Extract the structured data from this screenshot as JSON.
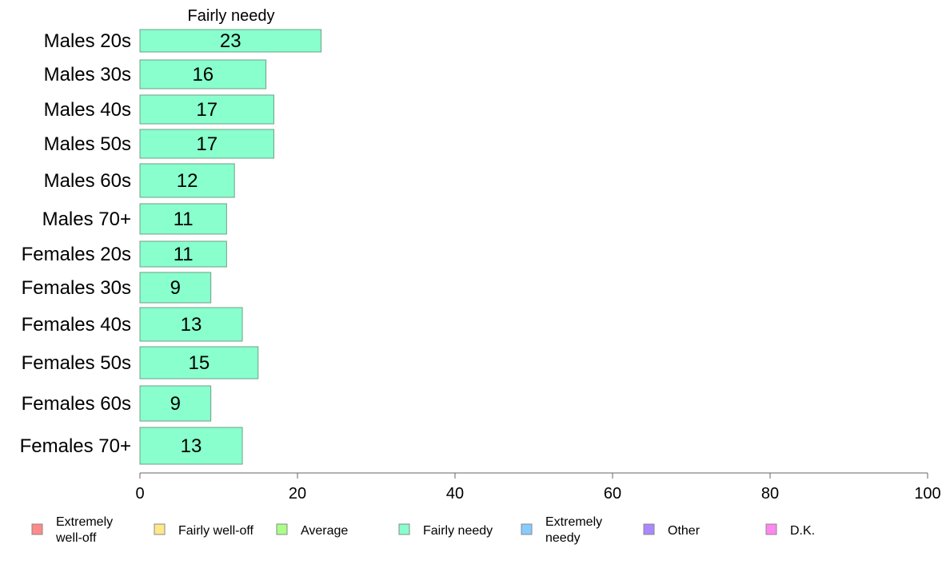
{
  "chart_data": {
    "type": "bar",
    "orientation": "horizontal",
    "title": "Fairly needy",
    "categories": [
      "Males 20s",
      "Males 30s",
      "Males 40s",
      "Males 50s",
      "Males 60s",
      "Males 70+",
      "Females 20s",
      "Females 30s",
      "Females 40s",
      "Females 50s",
      "Females 60s",
      "Females 70+"
    ],
    "series": [
      {
        "name": "Fairly needy",
        "values": [
          23,
          16,
          17,
          17,
          12,
          11,
          11,
          9,
          13,
          15,
          9,
          13
        ],
        "color": "#88ffcc"
      }
    ],
    "xlim": [
      0,
      100
    ],
    "xticks": [
      "0",
      "20",
      "40",
      "60",
      "80",
      "100"
    ],
    "grid": false,
    "legend_position": "bottom"
  },
  "legend": [
    {
      "lines": [
        "Extremely",
        "well-off"
      ],
      "color": "#ff8a8a"
    },
    {
      "lines": [
        "Fairly well-off"
      ],
      "color": "#ffe88a"
    },
    {
      "lines": [
        "Average"
      ],
      "color": "#aaff88"
    },
    {
      "lines": [
        "Fairly needy"
      ],
      "color": "#88ffcc"
    },
    {
      "lines": [
        "Extremely",
        "needy"
      ],
      "color": "#88ccff"
    },
    {
      "lines": [
        "Other"
      ],
      "color": "#aa88ff"
    },
    {
      "lines": [
        "D.K."
      ],
      "color": "#ff88ee"
    }
  ]
}
